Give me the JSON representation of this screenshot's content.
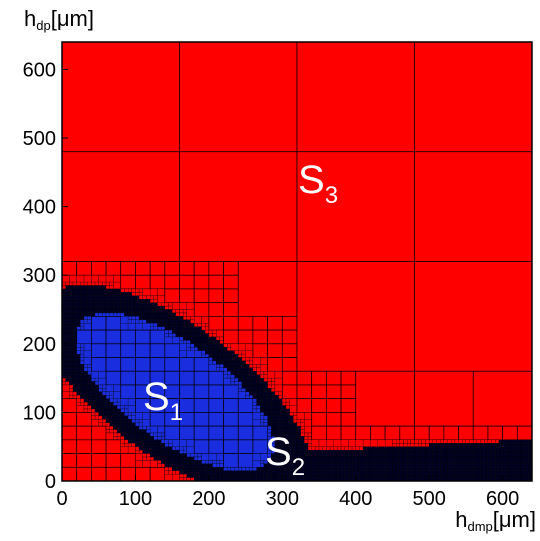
{
  "chart_data": {
    "type": "subdivision",
    "xlabel": {
      "base": "h",
      "subscript": "dmp",
      "unit": "[μm]"
    },
    "ylabel": {
      "base": "h",
      "subscript": "dp",
      "unit": "[μm]"
    },
    "xlim": [
      0,
      640
    ],
    "ylim": [
      0,
      640
    ],
    "xticks": [
      0,
      100,
      200,
      300,
      400,
      500,
      600
    ],
    "yticks": [
      0,
      100,
      200,
      300,
      400,
      500,
      600
    ],
    "regions": [
      {
        "base": "S",
        "subscript": "1",
        "color": "#1a2ee0"
      },
      {
        "base": "S",
        "subscript": "2",
        "color": "#000022"
      },
      {
        "base": "S",
        "subscript": "3",
        "color": "#ff0000"
      }
    ]
  }
}
